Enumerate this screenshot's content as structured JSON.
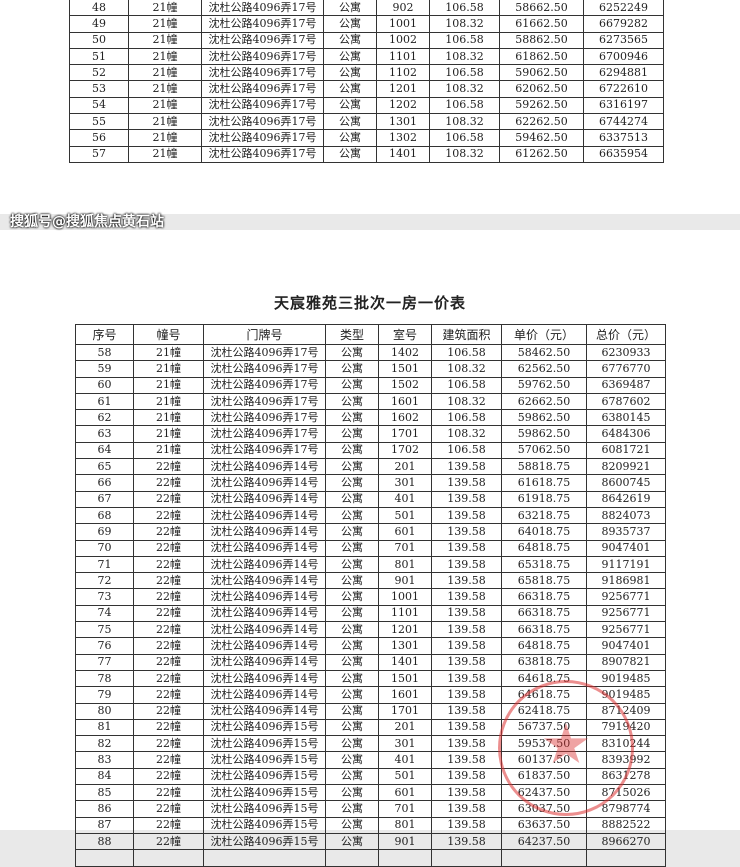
{
  "page1": {
    "rows": [
      [
        "48",
        "21幢",
        "沈杜公路4096弄17号",
        "公寓",
        "902",
        "106.58",
        "58662.50",
        "6252249"
      ],
      [
        "49",
        "21幢",
        "沈杜公路4096弄17号",
        "公寓",
        "1001",
        "108.32",
        "61662.50",
        "6679282"
      ],
      [
        "50",
        "21幢",
        "沈杜公路4096弄17号",
        "公寓",
        "1002",
        "106.58",
        "58862.50",
        "6273565"
      ],
      [
        "51",
        "21幢",
        "沈杜公路4096弄17号",
        "公寓",
        "1101",
        "108.32",
        "61862.50",
        "6700946"
      ],
      [
        "52",
        "21幢",
        "沈杜公路4096弄17号",
        "公寓",
        "1102",
        "106.58",
        "59062.50",
        "6294881"
      ],
      [
        "53",
        "21幢",
        "沈杜公路4096弄17号",
        "公寓",
        "1201",
        "108.32",
        "62062.50",
        "6722610"
      ],
      [
        "54",
        "21幢",
        "沈杜公路4096弄17号",
        "公寓",
        "1202",
        "106.58",
        "59262.50",
        "6316197"
      ],
      [
        "55",
        "21幢",
        "沈杜公路4096弄17号",
        "公寓",
        "1301",
        "108.32",
        "62262.50",
        "6744274"
      ],
      [
        "56",
        "21幢",
        "沈杜公路4096弄17号",
        "公寓",
        "1302",
        "106.58",
        "59462.50",
        "6337513"
      ],
      [
        "57",
        "21幢",
        "沈杜公路4096弄17号",
        "公寓",
        "1401",
        "108.32",
        "61262.50",
        "6635954"
      ]
    ]
  },
  "page2": {
    "title": "天宸雅苑三批次一房一价表",
    "headers": [
      "序号",
      "幢号",
      "门牌号",
      "类型",
      "室号",
      "建筑面积",
      "单价（元）",
      "总价（元）"
    ],
    "rows": [
      [
        "58",
        "21幢",
        "沈杜公路4096弄17号",
        "公寓",
        "1402",
        "106.58",
        "58462.50",
        "6230933"
      ],
      [
        "59",
        "21幢",
        "沈杜公路4096弄17号",
        "公寓",
        "1501",
        "108.32",
        "62562.50",
        "6776770"
      ],
      [
        "60",
        "21幢",
        "沈杜公路4096弄17号",
        "公寓",
        "1502",
        "106.58",
        "59762.50",
        "6369487"
      ],
      [
        "61",
        "21幢",
        "沈杜公路4096弄17号",
        "公寓",
        "1601",
        "108.32",
        "62662.50",
        "6787602"
      ],
      [
        "62",
        "21幢",
        "沈杜公路4096弄17号",
        "公寓",
        "1602",
        "106.58",
        "59862.50",
        "6380145"
      ],
      [
        "63",
        "21幢",
        "沈杜公路4096弄17号",
        "公寓",
        "1701",
        "108.32",
        "59862.50",
        "6484306"
      ],
      [
        "64",
        "21幢",
        "沈杜公路4096弄17号",
        "公寓",
        "1702",
        "106.58",
        "57062.50",
        "6081721"
      ],
      [
        "65",
        "22幢",
        "沈杜公路4096弄14号",
        "公寓",
        "201",
        "139.58",
        "58818.75",
        "8209921"
      ],
      [
        "66",
        "22幢",
        "沈杜公路4096弄14号",
        "公寓",
        "301",
        "139.58",
        "61618.75",
        "8600745"
      ],
      [
        "67",
        "22幢",
        "沈杜公路4096弄14号",
        "公寓",
        "401",
        "139.58",
        "61918.75",
        "8642619"
      ],
      [
        "68",
        "22幢",
        "沈杜公路4096弄14号",
        "公寓",
        "501",
        "139.58",
        "63218.75",
        "8824073"
      ],
      [
        "69",
        "22幢",
        "沈杜公路4096弄14号",
        "公寓",
        "601",
        "139.58",
        "64018.75",
        "8935737"
      ],
      [
        "70",
        "22幢",
        "沈杜公路4096弄14号",
        "公寓",
        "701",
        "139.58",
        "64818.75",
        "9047401"
      ],
      [
        "71",
        "22幢",
        "沈杜公路4096弄14号",
        "公寓",
        "801",
        "139.58",
        "65318.75",
        "9117191"
      ],
      [
        "72",
        "22幢",
        "沈杜公路4096弄14号",
        "公寓",
        "901",
        "139.58",
        "65818.75",
        "9186981"
      ],
      [
        "73",
        "22幢",
        "沈杜公路4096弄14号",
        "公寓",
        "1001",
        "139.58",
        "66318.75",
        "9256771"
      ],
      [
        "74",
        "22幢",
        "沈杜公路4096弄14号",
        "公寓",
        "1101",
        "139.58",
        "66318.75",
        "9256771"
      ],
      [
        "75",
        "22幢",
        "沈杜公路4096弄14号",
        "公寓",
        "1201",
        "139.58",
        "66318.75",
        "9256771"
      ],
      [
        "76",
        "22幢",
        "沈杜公路4096弄14号",
        "公寓",
        "1301",
        "139.58",
        "64818.75",
        "9047401"
      ],
      [
        "77",
        "22幢",
        "沈杜公路4096弄14号",
        "公寓",
        "1401",
        "139.58",
        "63818.75",
        "8907821"
      ],
      [
        "78",
        "22幢",
        "沈杜公路4096弄14号",
        "公寓",
        "1501",
        "139.58",
        "64618.75",
        "9019485"
      ],
      [
        "79",
        "22幢",
        "沈杜公路4096弄14号",
        "公寓",
        "1601",
        "139.58",
        "64618.75",
        "9019485"
      ],
      [
        "80",
        "22幢",
        "沈杜公路4096弄14号",
        "公寓",
        "1701",
        "139.58",
        "62418.75",
        "8712409"
      ],
      [
        "81",
        "22幢",
        "沈杜公路4096弄15号",
        "公寓",
        "201",
        "139.58",
        "56737.50",
        "7919420"
      ],
      [
        "82",
        "22幢",
        "沈杜公路4096弄15号",
        "公寓",
        "301",
        "139.58",
        "59537.50",
        "8310244"
      ],
      [
        "83",
        "22幢",
        "沈杜公路4096弄15号",
        "公寓",
        "401",
        "139.58",
        "60137.50",
        "8393992"
      ],
      [
        "84",
        "22幢",
        "沈杜公路4096弄15号",
        "公寓",
        "501",
        "139.58",
        "61837.50",
        "8631278"
      ],
      [
        "85",
        "22幢",
        "沈杜公路4096弄15号",
        "公寓",
        "601",
        "139.58",
        "62437.50",
        "8715026"
      ],
      [
        "86",
        "22幢",
        "沈杜公路4096弄15号",
        "公寓",
        "701",
        "139.58",
        "63037.50",
        "8798774"
      ],
      [
        "87",
        "22幢",
        "沈杜公路4096弄15号",
        "公寓",
        "801",
        "139.58",
        "63637.50",
        "8882522"
      ],
      [
        "88",
        "22幢",
        "沈杜公路4096弄15号",
        "公寓",
        "901",
        "139.58",
        "64237.50",
        "8966270"
      ]
    ]
  },
  "watermark": "搜狐号@搜狐焦点黄石站",
  "stamp_color": "#dc3232"
}
